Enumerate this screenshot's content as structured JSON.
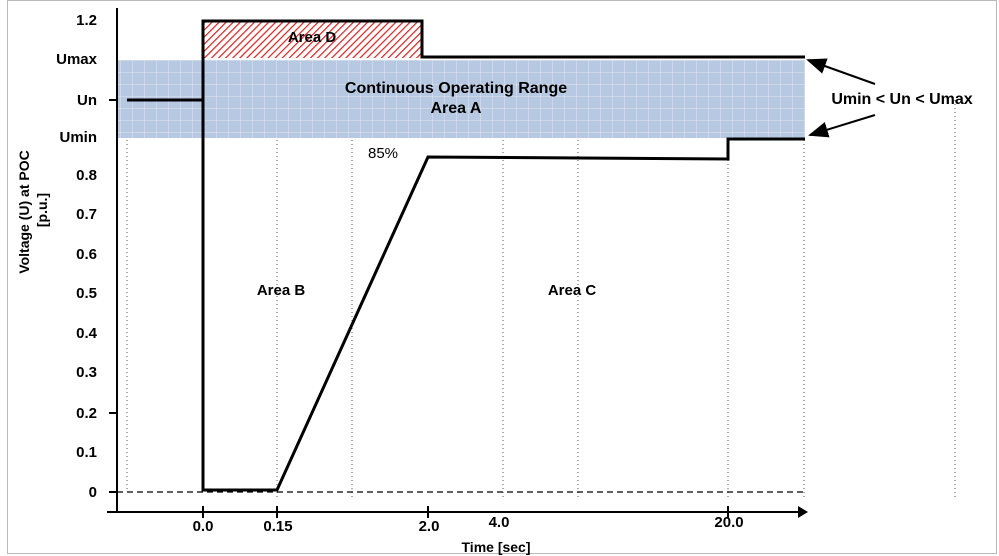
{
  "chart_data": {
    "type": "line",
    "title": "",
    "xlabel": "Time [sec]",
    "ylabel_line1": "Voltage (U) at POC",
    "ylabel_line2": "[p.u.]",
    "x_ticks": [
      "0.0",
      "0.15",
      "2.0",
      "4.0",
      "20.0"
    ],
    "y_ticks": [
      "1.2",
      "Umax",
      "Un",
      "Umin",
      "0.8",
      "0.7",
      "0.6",
      "0.5",
      "0.4",
      "0.3",
      "0.2",
      "0.1",
      "0"
    ],
    "series": [
      {
        "x": [
          "-",
          "0.0",
          "0.0",
          "0.15",
          "2.0",
          "20.0",
          "20.0",
          "-"
        ],
        "y": [
          "Un",
          "Un",
          "0",
          "0",
          "0.85",
          "0.85",
          "Umin",
          "Umin"
        ]
      },
      {
        "x": [
          "0.0",
          "0.0",
          "2.0",
          "2.0",
          "-"
        ],
        "y": [
          "Umax",
          "1.2",
          "1.2",
          "Umax",
          "Umax"
        ]
      }
    ],
    "annotations": {
      "continuous_range": "Continuous Operating Range",
      "area_a": "Area A",
      "area_b": "Area B",
      "area_c": "Area C",
      "area_d": "Area D",
      "pct": "85%",
      "relation": "Umin < Un < Umax"
    },
    "colors": {
      "continuous_range_fill": "#b7c9e2",
      "continuous_range_grid": "#e2e6ee",
      "area_d_hatch": "#d92020",
      "line": "#000000"
    },
    "grid": "dotted vertical lines"
  }
}
